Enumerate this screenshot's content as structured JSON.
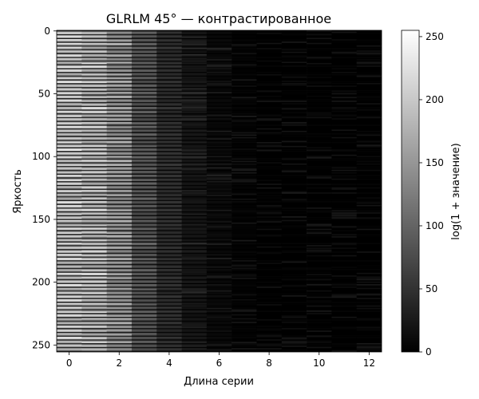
{
  "chart_data": {
    "type": "heatmap",
    "title": "GLRLM 45° — контрастированное",
    "xlabel": "Длина серии",
    "ylabel": "Яркость",
    "xlim": [
      -0.5,
      12.5
    ],
    "ylim": [
      255.5,
      -0.5
    ],
    "x_ticks": [
      0,
      2,
      4,
      6,
      8,
      10,
      12
    ],
    "y_ticks": [
      0,
      50,
      100,
      150,
      200,
      250
    ],
    "run_lengths": [
      0,
      1,
      2,
      3,
      4,
      5,
      6,
      7,
      8,
      9,
      10,
      11,
      12
    ],
    "brightness_levels": 256,
    "column_mean_values": [
      195,
      185,
      150,
      85,
      45,
      20,
      8,
      2,
      0,
      0,
      0,
      0,
      0
    ],
    "colormap": "gray",
    "colorbar": {
      "label": "log(1 + значение)",
      "range": [
        0,
        255
      ],
      "ticks": [
        0,
        50,
        100,
        150,
        200,
        250
      ]
    },
    "grid": false,
    "legend": "none"
  }
}
